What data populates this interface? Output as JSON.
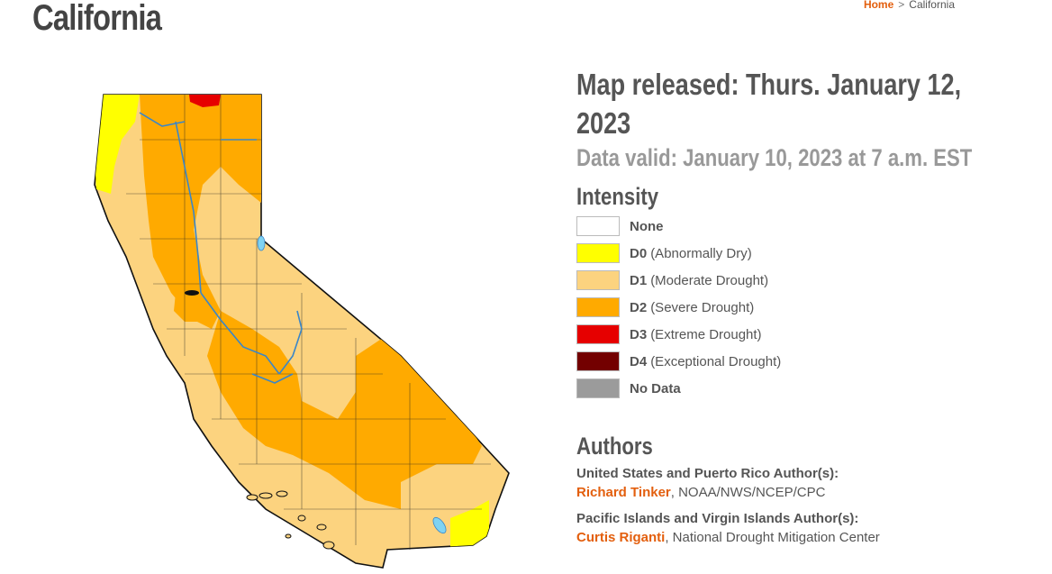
{
  "page": {
    "title": "California"
  },
  "breadcrumb": {
    "home": "Home",
    "separator": ">",
    "current": "California"
  },
  "map": {
    "released": "Map released: Thurs. January 12, 2023",
    "valid": "Data valid: January 10, 2023 at 7 a.m. EST"
  },
  "intensity": {
    "heading": "Intensity",
    "items": [
      {
        "code": "None",
        "label": "",
        "color": "#ffffff"
      },
      {
        "code": "D0",
        "label": "(Abnormally Dry)",
        "color": "#ffff00"
      },
      {
        "code": "D1",
        "label": "(Moderate Drought)",
        "color": "#fcd37f"
      },
      {
        "code": "D2",
        "label": "(Severe Drought)",
        "color": "#ffaa00"
      },
      {
        "code": "D3",
        "label": "(Extreme Drought)",
        "color": "#e60000"
      },
      {
        "code": "D4",
        "label": "(Exceptional Drought)",
        "color": "#730000"
      },
      {
        "code": "No Data",
        "label": "",
        "color": "#9b9b9b"
      }
    ]
  },
  "authors": {
    "heading": "Authors",
    "groups": [
      {
        "role": "United States and Puerto Rico Author(s):",
        "name": "Richard Tinker",
        "affiliation": ", NOAA/NWS/NCEP/CPC"
      },
      {
        "role": "Pacific Islands and Virgin Islands Author(s):",
        "name": "Curtis Riganti",
        "affiliation": ", National Drought Mitigation Center"
      }
    ]
  }
}
